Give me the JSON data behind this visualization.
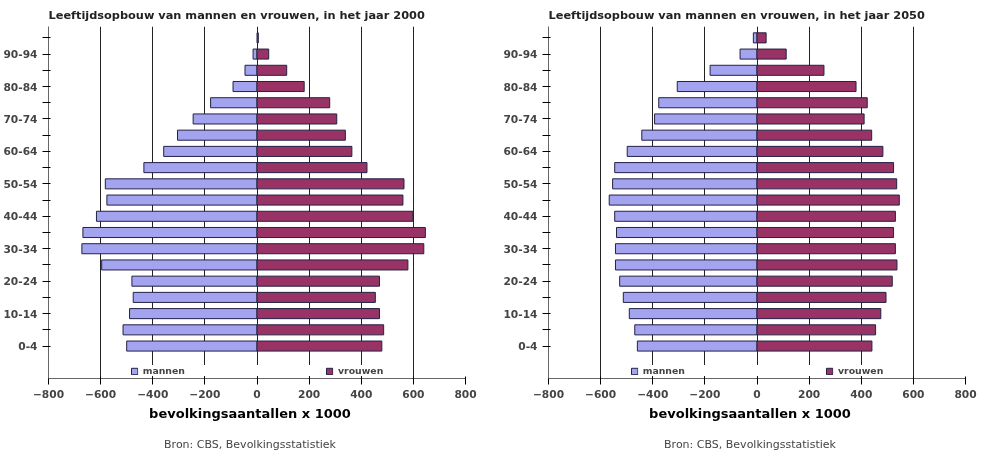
{
  "chart_data": [
    {
      "type": "bar",
      "orientation": "horizontal",
      "title": "Leeftijdsopbouw van mannen en vrouwen, in het jaar 2000",
      "xlabel": "bevolkingsaantallen x 1000",
      "annotations": [
        "Bron: CBS, Bevolkingsstatistiek"
      ],
      "categories": [
        null,
        "90-94",
        null,
        "80-84",
        null,
        "70-74",
        null,
        "60-64",
        null,
        "50-54",
        null,
        "40-44",
        null,
        "30-34",
        null,
        "20-24",
        null,
        "10-14",
        null,
        "0-4"
      ],
      "series": [
        {
          "name": "mannen",
          "color": "#a3a3f0",
          "values": [
            null,
            -15,
            -46,
            -92,
            -178,
            -245,
            -305,
            -358,
            -434,
            -582,
            -576,
            -616,
            -668,
            -672,
            -596,
            -480,
            -475,
            -489,
            -514,
            -500
          ]
        },
        {
          "name": "vrouwen",
          "color": "#993366",
          "values": [
            5,
            45,
            114,
            181,
            279,
            306,
            339,
            364,
            422,
            564,
            560,
            598,
            646,
            640,
            579,
            470,
            454,
            470,
            486,
            479
          ]
        }
      ],
      "xlim": [
        -800,
        800
      ],
      "xticks": [
        -800,
        -600,
        -400,
        -200,
        0,
        200,
        400,
        600,
        800
      ],
      "grid": "x",
      "legend": "bottom",
      "stacked": true
    },
    {
      "type": "bar",
      "orientation": "horizontal",
      "title": "Leeftijdsopbouw van mannen en vrouwen, in het jaar 2050",
      "xlabel": "bevolkingsaantallen x 1000",
      "annotations": [
        "Bron: CBS, Bevolkingsstatistiek"
      ],
      "categories": [
        null,
        "90-94",
        null,
        "80-84",
        null,
        "70-74",
        null,
        "60-64",
        null,
        "50-54",
        null,
        "40-44",
        null,
        "30-34",
        null,
        "20-24",
        null,
        "10-14",
        null,
        "0-4"
      ],
      "series": [
        {
          "name": "mannen",
          "color": "#a3a3f0",
          "values": [
            -14,
            -65,
            -180,
            -306,
            -377,
            -393,
            -442,
            -498,
            -546,
            -554,
            -567,
            -546,
            -539,
            -543,
            -543,
            -527,
            -513,
            -490,
            -469,
            -459
          ]
        },
        {
          "name": "vrouwen",
          "color": "#993366",
          "values": [
            35,
            112,
            257,
            380,
            423,
            411,
            440,
            483,
            524,
            536,
            546,
            531,
            524,
            531,
            537,
            519,
            495,
            475,
            455,
            441
          ]
        }
      ],
      "xlim": [
        -800,
        800
      ],
      "xticks": [
        -800,
        -600,
        -400,
        -200,
        0,
        200,
        400,
        600,
        800
      ],
      "grid": "x",
      "legend": "bottom",
      "stacked": true
    }
  ]
}
